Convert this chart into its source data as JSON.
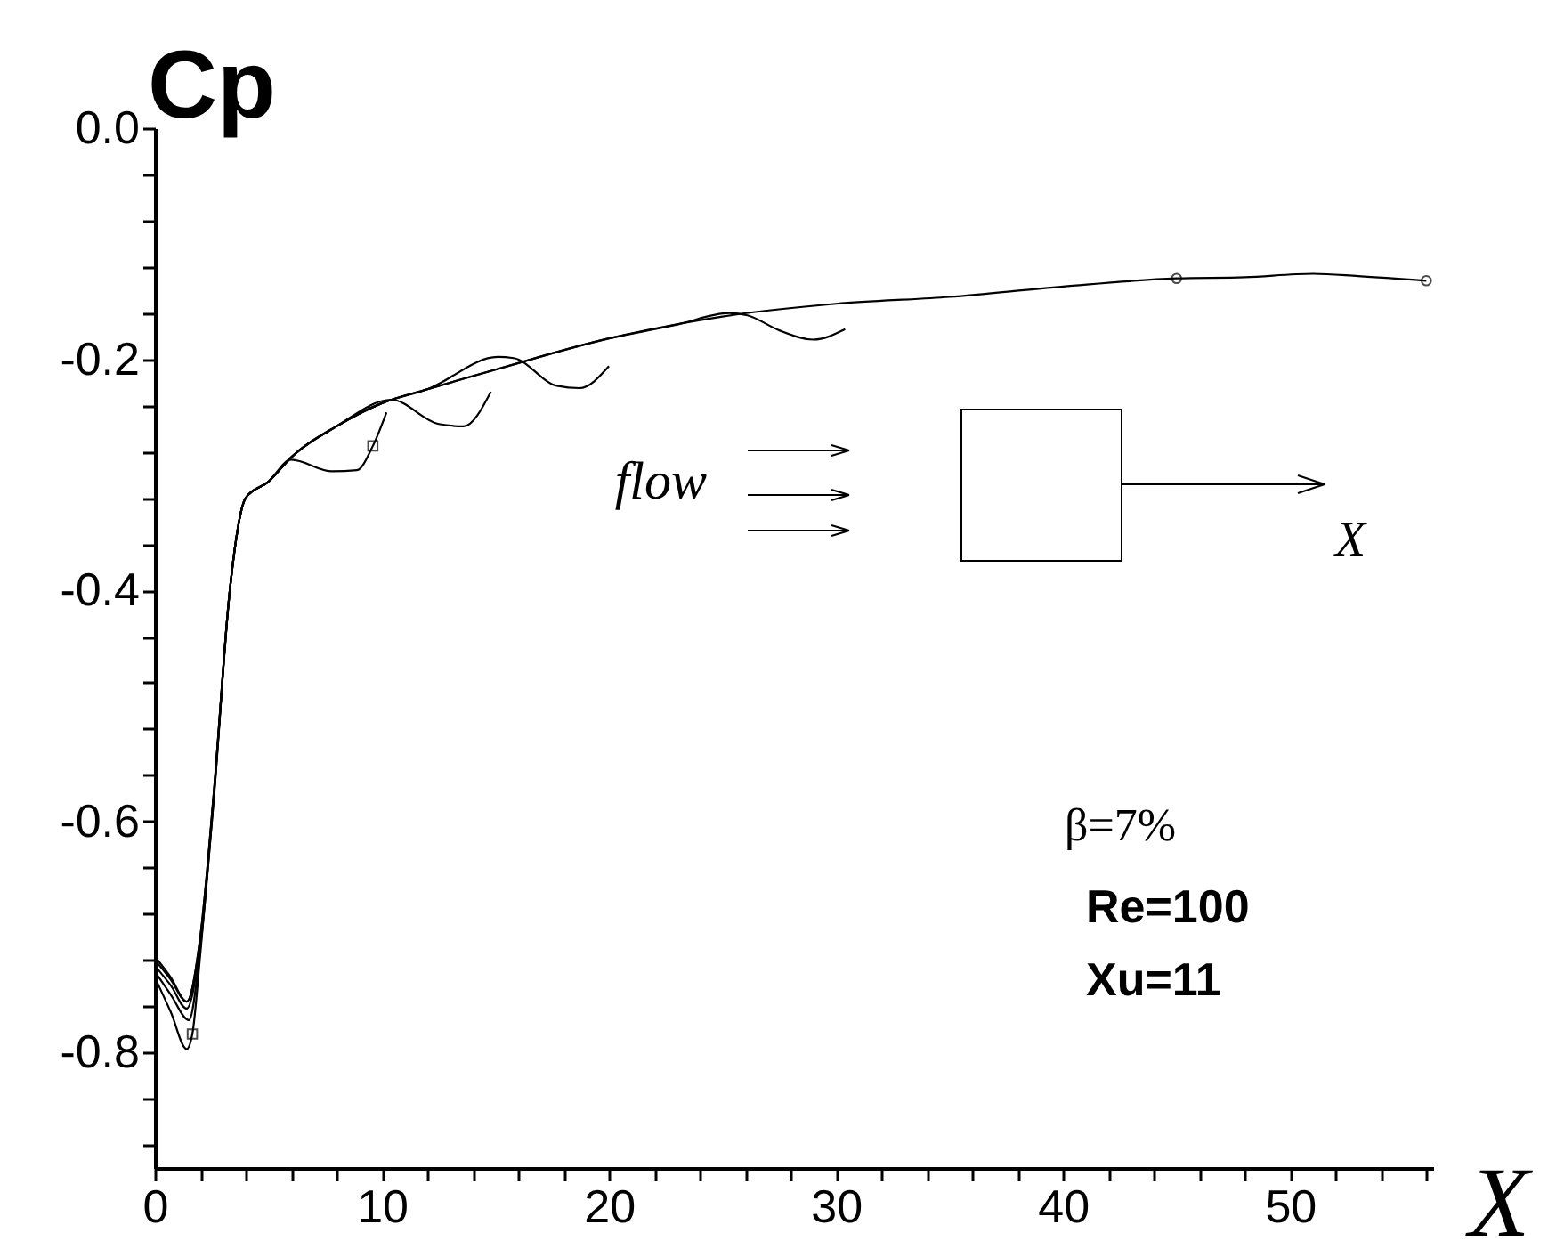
{
  "chart_data": {
    "type": "line",
    "xlabel": "X",
    "ylabel": "Cp",
    "xlim": [
      0,
      56.3
    ],
    "ylim": [
      -0.9,
      0
    ],
    "xticks": [
      0,
      {
        "value": 2,
        "label": null
      },
      {
        "value": 4,
        "label": null
      },
      {
        "value": 6,
        "label": null
      },
      {
        "value": 8,
        "label": null
      },
      10,
      {
        "value": 12,
        "label": null
      },
      {
        "value": 14,
        "label": null
      },
      {
        "value": 16,
        "label": null
      },
      {
        "value": 18,
        "label": null
      },
      20,
      {
        "value": 22,
        "label": null
      },
      {
        "value": 24,
        "label": null
      },
      {
        "value": 26,
        "label": null
      },
      {
        "value": 28,
        "label": null
      },
      30,
      {
        "value": 32,
        "label": null
      },
      {
        "value": 34,
        "label": null
      },
      {
        "value": 36,
        "label": null
      },
      {
        "value": 38,
        "label": null
      },
      40,
      {
        "value": 42,
        "label": null
      },
      {
        "value": 44,
        "label": null
      },
      {
        "value": 46,
        "label": null
      },
      {
        "value": 48,
        "label": null
      },
      50,
      {
        "value": 52,
        "label": null
      },
      {
        "value": 54,
        "label": null
      },
      {
        "value": 56,
        "label": null
      }
    ],
    "yticks": [
      {
        "value": 0,
        "label": "0.0"
      },
      {
        "value": -0.04,
        "label": null
      },
      {
        "value": -0.08,
        "label": null
      },
      {
        "value": -0.12,
        "label": null
      },
      {
        "value": -0.16,
        "label": null
      },
      -0.2,
      {
        "value": -0.24,
        "label": null
      },
      {
        "value": -0.28,
        "label": null
      },
      {
        "value": -0.32,
        "label": null
      },
      {
        "value": -0.36,
        "label": null
      },
      -0.4,
      {
        "value": -0.44,
        "label": null
      },
      {
        "value": -0.48,
        "label": null
      },
      {
        "value": -0.52,
        "label": null
      },
      {
        "value": -0.56,
        "label": null
      },
      -0.6,
      {
        "value": -0.64,
        "label": null
      },
      {
        "value": -0.68,
        "label": null
      },
      {
        "value": -0.72,
        "label": null
      },
      {
        "value": -0.76,
        "label": null
      },
      -0.8,
      {
        "value": -0.84,
        "label": null
      },
      {
        "value": -0.88,
        "label": null
      }
    ],
    "grid": false,
    "line_style": "solid",
    "annotations": [
      "flow",
      "X",
      "β=7%",
      "Re=100",
      "Xu=11"
    ],
    "series": [
      {
        "color": "#000000",
        "x": [
          0,
          0.7,
          1.4,
          2.0,
          2.6,
          3.3,
          4.0,
          5.0,
          6.0,
          8.0,
          10,
          12,
          15,
          20,
          25,
          30,
          35,
          40,
          45,
          48,
          51,
          53,
          56
        ],
        "values": [
          -0.717,
          -0.735,
          -0.756,
          -0.7,
          -0.574,
          -0.4,
          -0.32,
          -0.306,
          -0.285,
          -0.258,
          -0.238,
          -0.226,
          -0.209,
          -0.182,
          -0.163,
          -0.152,
          -0.146,
          -0.137,
          -0.13,
          -0.129,
          -0.126,
          -0.128,
          -0.132
        ]
      },
      {
        "color": "#000000",
        "x": [
          0,
          0.7,
          1.4,
          2.0,
          2.6,
          3.3,
          4.0,
          5.0,
          6.0,
          8.0,
          10,
          12,
          15,
          20,
          23,
          25.3,
          26.1,
          27.5,
          29.0,
          30.4
        ],
        "values": [
          -0.72,
          -0.737,
          -0.756,
          -0.7,
          -0.574,
          -0.4,
          -0.32,
          -0.306,
          -0.285,
          -0.258,
          -0.238,
          -0.226,
          -0.209,
          -0.182,
          -0.17,
          -0.16,
          -0.162,
          -0.175,
          -0.183,
          -0.174
        ]
      },
      {
        "color": "#000000",
        "x": [
          0,
          0.7,
          1.4,
          2.0,
          2.6,
          3.3,
          4.0,
          5.0,
          6.0,
          8.0,
          10,
          12,
          15.1,
          15.8,
          17.7,
          18.7,
          20
        ],
        "values": [
          -0.725,
          -0.742,
          -0.762,
          -0.705,
          -0.576,
          -0.4,
          -0.32,
          -0.306,
          -0.285,
          -0.258,
          -0.238,
          -0.226,
          -0.198,
          -0.199,
          -0.223,
          -0.225,
          -0.206
        ]
      },
      {
        "color": "#000000",
        "x": [
          0,
          0.7,
          1.5,
          2.0,
          2.6,
          3.3,
          4.0,
          5.0,
          6.0,
          8.0,
          10.4,
          12.5,
          13.6,
          14.8
        ],
        "values": [
          -0.73,
          -0.75,
          -0.772,
          -0.71,
          -0.578,
          -0.4,
          -0.32,
          -0.306,
          -0.285,
          -0.258,
          -0.235,
          -0.256,
          -0.258,
          -0.228
        ]
      },
      {
        "color": "#000000",
        "x": [
          0,
          0.7,
          1.4,
          1.65,
          2.0,
          2.6,
          3.3,
          4.0,
          5.0,
          6.0,
          7.8,
          8.9,
          9.6,
          10.2
        ],
        "values": [
          -0.735,
          -0.765,
          -0.797,
          -0.784,
          -0.715,
          -0.58,
          -0.4,
          -0.32,
          -0.306,
          -0.287,
          -0.297,
          -0.296,
          -0.275,
          -0.246
        ]
      },
      {
        "type": "scatter",
        "marker": "square",
        "color": "#000000",
        "x": [
          1.65,
          9.6
        ],
        "values": [
          -0.784,
          -0.275
        ]
      },
      {
        "type": "scatter",
        "marker": "circle",
        "color": "#000000",
        "x": [
          45,
          56
        ],
        "values": [
          -0.13,
          -0.132
        ]
      }
    ]
  }
}
